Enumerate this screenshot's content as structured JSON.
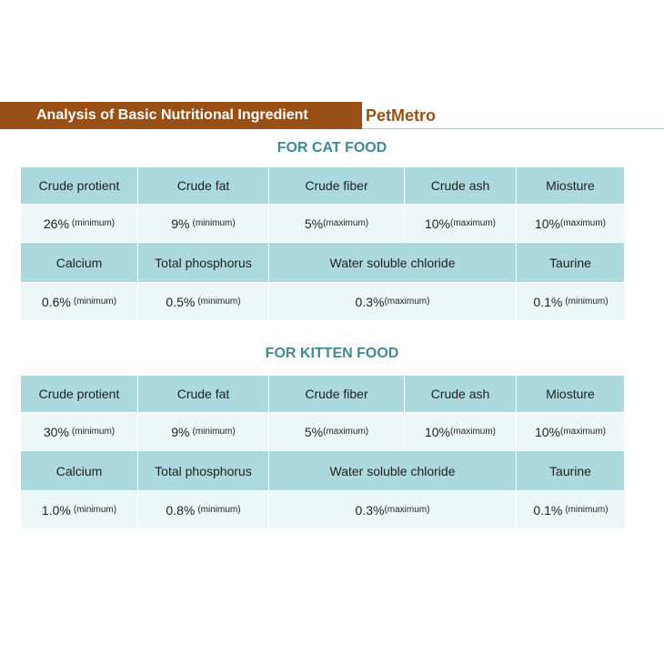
{
  "header": {
    "title": "Analysis of Basic Nutritional Ingredient",
    "brand": "PetMetro"
  },
  "cat": {
    "section_title": "FOR CAT FOOD",
    "row1_headers": [
      "Crude protient",
      "Crude fat",
      "Crude fiber",
      "Crude ash",
      "Miosture"
    ],
    "row1_values": [
      {
        "v": "26%",
        "q": "(minimum)"
      },
      {
        "v": "9%",
        "q": "(minimum)"
      },
      {
        "v": "5%",
        "q": "(maximum)"
      },
      {
        "v": "10%",
        "q": "(maximum)"
      },
      {
        "v": "10%",
        "q": "(maximum)"
      }
    ],
    "row2_headers": [
      "Calcium",
      "Total phosphorus",
      "Water soluble chloride",
      "Taurine"
    ],
    "row2_values": [
      {
        "v": "0.6%",
        "q": "(minimum)"
      },
      {
        "v": "0.5%",
        "q": "(minimum)"
      },
      {
        "v": "0.3%",
        "q": "(maximum)"
      },
      {
        "v": "0.1%",
        "q": "(minimum)"
      }
    ]
  },
  "kitten": {
    "section_title": "FOR KITTEN FOOD",
    "row1_headers": [
      "Crude protient",
      "Crude fat",
      "Crude fiber",
      "Crude ash",
      "Miosture"
    ],
    "row1_values": [
      {
        "v": "30%",
        "q": "(minimum)"
      },
      {
        "v": "9%",
        "q": "(minimum)"
      },
      {
        "v": "5%",
        "q": "(maximum)"
      },
      {
        "v": "10%",
        "q": "(maximum)"
      },
      {
        "v": "10%",
        "q": "(maximum)"
      }
    ],
    "row2_headers": [
      "Calcium",
      "Total phosphorus",
      "Water soluble chloride",
      "Taurine"
    ],
    "row2_values": [
      {
        "v": "1.0%",
        "q": "(minimum)"
      },
      {
        "v": "0.8%",
        "q": "(minimum)"
      },
      {
        "v": "0.3%",
        "q": "(maximum)"
      },
      {
        "v": "0.1%",
        "q": "(minimum)"
      }
    ]
  }
}
